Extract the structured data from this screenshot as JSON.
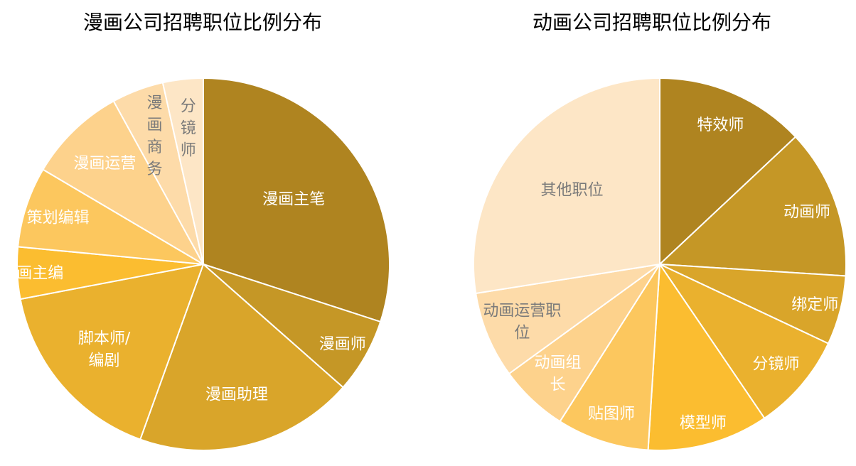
{
  "chart_data": [
    {
      "type": "pie",
      "title": "漫画公司招聘职位比例分布",
      "slices": [
        {
          "label": "漫画主笔",
          "value": 30.0,
          "color": "#af8420",
          "text_color": "#ffffff"
        },
        {
          "label": "漫画师",
          "value": 6.5,
          "color": "#c59726",
          "text_color": "#ffffff"
        },
        {
          "label": "漫画助理",
          "value": 19.0,
          "color": "#d9a52a",
          "text_color": "#ffffff"
        },
        {
          "label": "脚本师/编剧",
          "value": 16.5,
          "color": "#eab12e",
          "text_color": "#ffffff"
        },
        {
          "label": "漫画主编",
          "value": 4.5,
          "color": "#fbbd30",
          "text_color": "#ffffff"
        },
        {
          "label": "策划编辑",
          "value": 7.0,
          "color": "#fcc75e",
          "text_color": "#ffffff"
        },
        {
          "label": "漫画运营",
          "value": 8.5,
          "color": "#fdd28c",
          "text_color": "#ffffff"
        },
        {
          "label": "漫画商务",
          "value": 4.5,
          "color": "#fddba9",
          "text_color": "#7a7a7a"
        },
        {
          "label": "分镜师",
          "value": 3.5,
          "color": "#fde6c6",
          "text_color": "#7a7a7a"
        }
      ]
    },
    {
      "type": "pie",
      "title": "动画公司招聘职位比例分布",
      "slices": [
        {
          "label": "特效师",
          "value": 13.0,
          "color": "#af8420",
          "text_color": "#ffffff"
        },
        {
          "label": "动画师",
          "value": 13.0,
          "color": "#c59726",
          "text_color": "#ffffff"
        },
        {
          "label": "绑定师",
          "value": 6.0,
          "color": "#d9a52a",
          "text_color": "#ffffff"
        },
        {
          "label": "分镜师",
          "value": 8.5,
          "color": "#eab12e",
          "text_color": "#ffffff"
        },
        {
          "label": "模型师",
          "value": 10.5,
          "color": "#fbbd30",
          "text_color": "#ffffff"
        },
        {
          "label": "贴图师",
          "value": 8.0,
          "color": "#fcc75e",
          "text_color": "#ffffff"
        },
        {
          "label": "动画组长",
          "value": 6.0,
          "color": "#fdd28c",
          "text_color": "#ffffff"
        },
        {
          "label": "动画运营职位",
          "value": 7.5,
          "color": "#fddba9",
          "text_color": "#7a7a7a"
        },
        {
          "label": "其他职位",
          "value": 27.5,
          "color": "#fde6c6",
          "text_color": "#7a7a7a"
        }
      ]
    }
  ]
}
